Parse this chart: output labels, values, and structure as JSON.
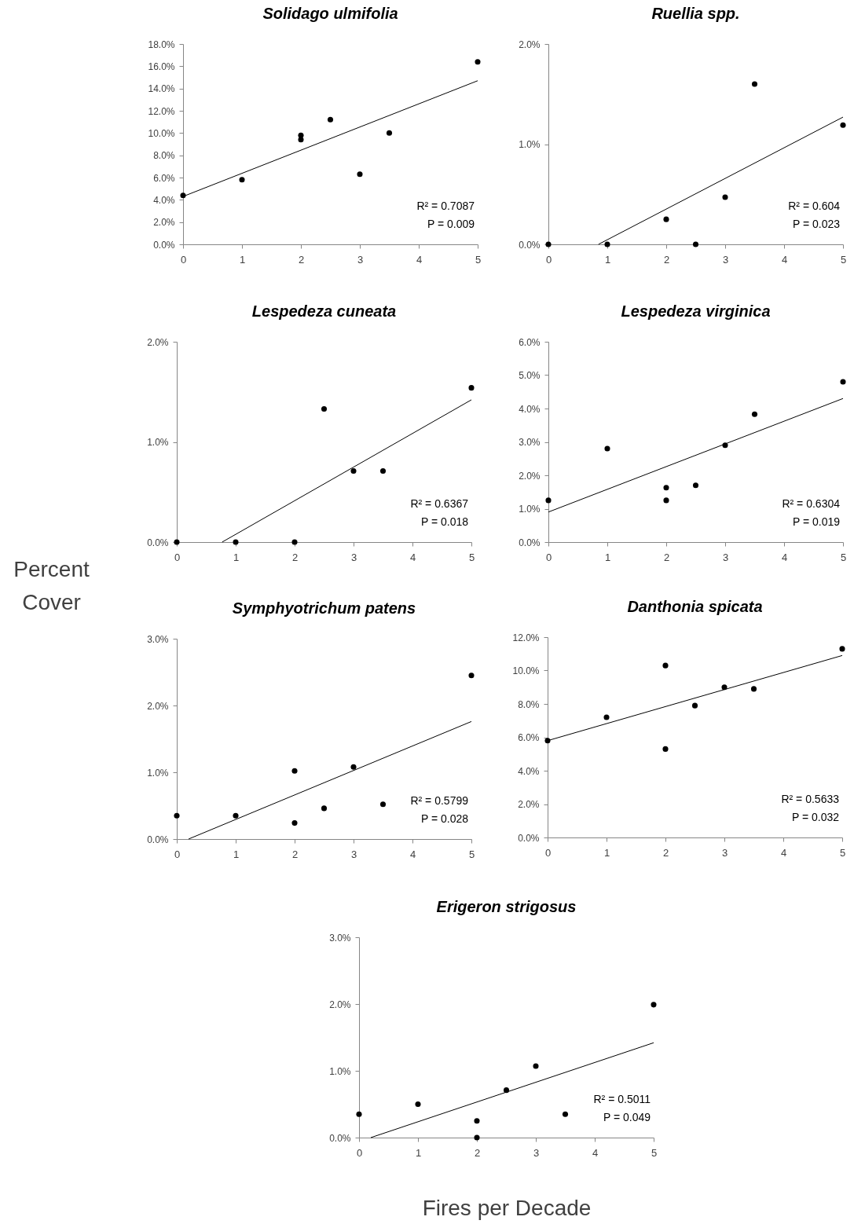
{
  "chart_data": [
    {
      "type": "scatter",
      "title": "Solidago ulmifolia",
      "line_style": "solid",
      "xlim": [
        0,
        5
      ],
      "xticks": [
        0,
        1,
        2,
        3,
        4,
        5
      ],
      "ylim": [
        0,
        18
      ],
      "yticks": [
        {
          "value": 0,
          "label": "0.0%"
        },
        {
          "value": 2,
          "label": "2.0%"
        },
        {
          "value": 4,
          "label": "4.0%"
        },
        {
          "value": 6,
          "label": "6.0%"
        },
        {
          "value": 8,
          "label": "8.0%"
        },
        {
          "value": 10,
          "label": "10.0%"
        },
        {
          "value": 12,
          "label": "12.0%"
        },
        {
          "value": 14,
          "label": "14.0%"
        },
        {
          "value": 16,
          "label": "16.0%"
        },
        {
          "value": 18,
          "label": "18.0%"
        }
      ],
      "annotations": [
        "R² = 0.7087",
        "P = 0.009"
      ],
      "series": [
        {
          "type": "scatter",
          "color": "#000000",
          "marker": "circle",
          "x": [
            0,
            1,
            2,
            2,
            2.5,
            3,
            3.5,
            5
          ],
          "values": [
            4.4,
            5.8,
            9.8,
            9.4,
            11.2,
            6.3,
            10.0,
            16.4
          ]
        },
        {
          "type": "line",
          "color": "#000000",
          "x": [
            0,
            5
          ],
          "values": [
            4.3,
            14.7
          ]
        }
      ]
    },
    {
      "type": "scatter",
      "title": "Ruellia spp.",
      "line_style": "solid",
      "xlim": [
        0,
        5
      ],
      "xticks": [
        0,
        1,
        2,
        3,
        4,
        5
      ],
      "ylim": [
        0,
        2
      ],
      "yticks": [
        {
          "value": 0,
          "label": "0.0%"
        },
        {
          "value": 1,
          "label": "1.0%"
        },
        {
          "value": 2,
          "label": "2.0%"
        }
      ],
      "annotations": [
        "R² = 0.604",
        "P = 0.023"
      ],
      "series": [
        {
          "type": "scatter",
          "color": "#000000",
          "marker": "circle",
          "x": [
            0,
            1,
            2,
            2.5,
            3,
            3.5,
            5
          ],
          "values": [
            0,
            0,
            0.25,
            0,
            0.47,
            1.6,
            1.19
          ]
        },
        {
          "type": "line",
          "color": "#000000",
          "x": [
            0.85,
            5
          ],
          "values": [
            0,
            1.27
          ]
        }
      ]
    },
    {
      "type": "scatter",
      "title": "Lespedeza cuneata",
      "ylabel": "Percent Cover",
      "line_style": "solid",
      "xlim": [
        0,
        5
      ],
      "xticks": [
        0,
        1,
        2,
        3,
        4,
        5
      ],
      "ylim": [
        0,
        2
      ],
      "yticks": [
        {
          "value": 0,
          "label": "0.0%"
        },
        {
          "value": 1,
          "label": "1.0%"
        },
        {
          "value": 2,
          "label": "2.0%"
        }
      ],
      "annotations": [
        "R² = 0.6367",
        "P = 0.018"
      ],
      "series": [
        {
          "type": "scatter",
          "color": "#000000",
          "marker": "circle",
          "x": [
            0,
            1,
            2,
            2.5,
            3,
            3.5,
            5
          ],
          "values": [
            0,
            0,
            0,
            1.33,
            0.71,
            0.71,
            1.54
          ]
        },
        {
          "type": "line",
          "color": "#000000",
          "x": [
            0.77,
            5
          ],
          "values": [
            0,
            1.42
          ]
        }
      ]
    },
    {
      "type": "scatter",
      "title": "Lespedeza virginica",
      "line_style": "solid",
      "xlim": [
        0,
        5
      ],
      "xticks": [
        0,
        1,
        2,
        3,
        4,
        5
      ],
      "ylim": [
        0,
        6
      ],
      "yticks": [
        {
          "value": 0,
          "label": "0.0%"
        },
        {
          "value": 1,
          "label": "1.0%"
        },
        {
          "value": 2,
          "label": "2.0%"
        },
        {
          "value": 3,
          "label": "3.0%"
        },
        {
          "value": 4,
          "label": "4.0%"
        },
        {
          "value": 5,
          "label": "5.0%"
        },
        {
          "value": 6,
          "label": "6.0%"
        }
      ],
      "annotations": [
        "R² = 0.6304",
        "P = 0.019"
      ],
      "series": [
        {
          "type": "scatter",
          "color": "#000000",
          "marker": "circle",
          "x": [
            0,
            1,
            2,
            2,
            2.5,
            3,
            3.5,
            5
          ],
          "values": [
            1.25,
            2.8,
            1.63,
            1.25,
            1.7,
            2.9,
            3.83,
            4.8
          ]
        },
        {
          "type": "line",
          "color": "#000000",
          "x": [
            0,
            5
          ],
          "values": [
            0.9,
            4.3
          ]
        }
      ]
    },
    {
      "type": "scatter",
      "title": "Symphyotrichum patens",
      "line_style": "solid",
      "xlim": [
        0,
        5
      ],
      "xticks": [
        0,
        1,
        2,
        3,
        4,
        5
      ],
      "ylim": [
        0,
        3
      ],
      "yticks": [
        {
          "value": 0,
          "label": "0.0%"
        },
        {
          "value": 1,
          "label": "1.0%"
        },
        {
          "value": 2,
          "label": "2.0%"
        },
        {
          "value": 3,
          "label": "3.0%"
        }
      ],
      "annotations": [
        "R² = 0.5799",
        "P = 0.028"
      ],
      "series": [
        {
          "type": "scatter",
          "color": "#000000",
          "marker": "circle",
          "x": [
            0,
            1,
            2,
            2,
            2.5,
            3,
            3.5,
            5
          ],
          "values": [
            0.35,
            0.35,
            1.02,
            0.24,
            0.46,
            1.08,
            0.52,
            2.45
          ]
        },
        {
          "type": "line",
          "color": "#000000",
          "x": [
            0.2,
            5
          ],
          "values": [
            0,
            1.76
          ]
        }
      ]
    },
    {
      "type": "scatter",
      "title": "Danthonia spicata",
      "line_style": "solid",
      "xlim": [
        0,
        5
      ],
      "xticks": [
        0,
        1,
        2,
        3,
        4,
        5
      ],
      "ylim": [
        0,
        12
      ],
      "yticks": [
        {
          "value": 0,
          "label": "0.0%"
        },
        {
          "value": 2,
          "label": "2.0%"
        },
        {
          "value": 4,
          "label": "4.0%"
        },
        {
          "value": 6,
          "label": "6.0%"
        },
        {
          "value": 8,
          "label": "8.0%"
        },
        {
          "value": 10,
          "label": "10.0%"
        },
        {
          "value": 12,
          "label": "12.0%"
        }
      ],
      "annotations": [
        "R² = 0.5633",
        "P = 0.032"
      ],
      "series": [
        {
          "type": "scatter",
          "color": "#000000",
          "marker": "circle",
          "x": [
            0,
            1,
            2,
            2,
            2.5,
            3,
            3.5,
            5
          ],
          "values": [
            5.8,
            7.2,
            10.3,
            5.3,
            7.9,
            9.0,
            8.9,
            11.3
          ]
        },
        {
          "type": "line",
          "color": "#000000",
          "x": [
            0,
            5
          ],
          "values": [
            5.8,
            10.9
          ]
        }
      ]
    },
    {
      "type": "scatter",
      "title": "Erigeron strigosus",
      "xlabel": "Fires per Decade",
      "line_style": "solid",
      "xlim": [
        0,
        5
      ],
      "xticks": [
        0,
        1,
        2,
        3,
        4,
        5
      ],
      "ylim": [
        0,
        3
      ],
      "yticks": [
        {
          "value": 0,
          "label": "0.0%"
        },
        {
          "value": 1,
          "label": "1.0%"
        },
        {
          "value": 2,
          "label": "2.0%"
        },
        {
          "value": 3,
          "label": "3.0%"
        }
      ],
      "annotations": [
        "R² = 0.5011",
        "P = 0.049"
      ],
      "series": [
        {
          "type": "scatter",
          "color": "#000000",
          "marker": "circle",
          "x": [
            0,
            1,
            2,
            2,
            2.5,
            3,
            3.5,
            5
          ],
          "values": [
            0.35,
            0.5,
            0.25,
            0,
            0.71,
            1.07,
            0.35,
            1.99
          ]
        },
        {
          "type": "line",
          "color": "#000000",
          "x": [
            0.2,
            5
          ],
          "values": [
            0,
            1.42
          ]
        }
      ]
    }
  ]
}
